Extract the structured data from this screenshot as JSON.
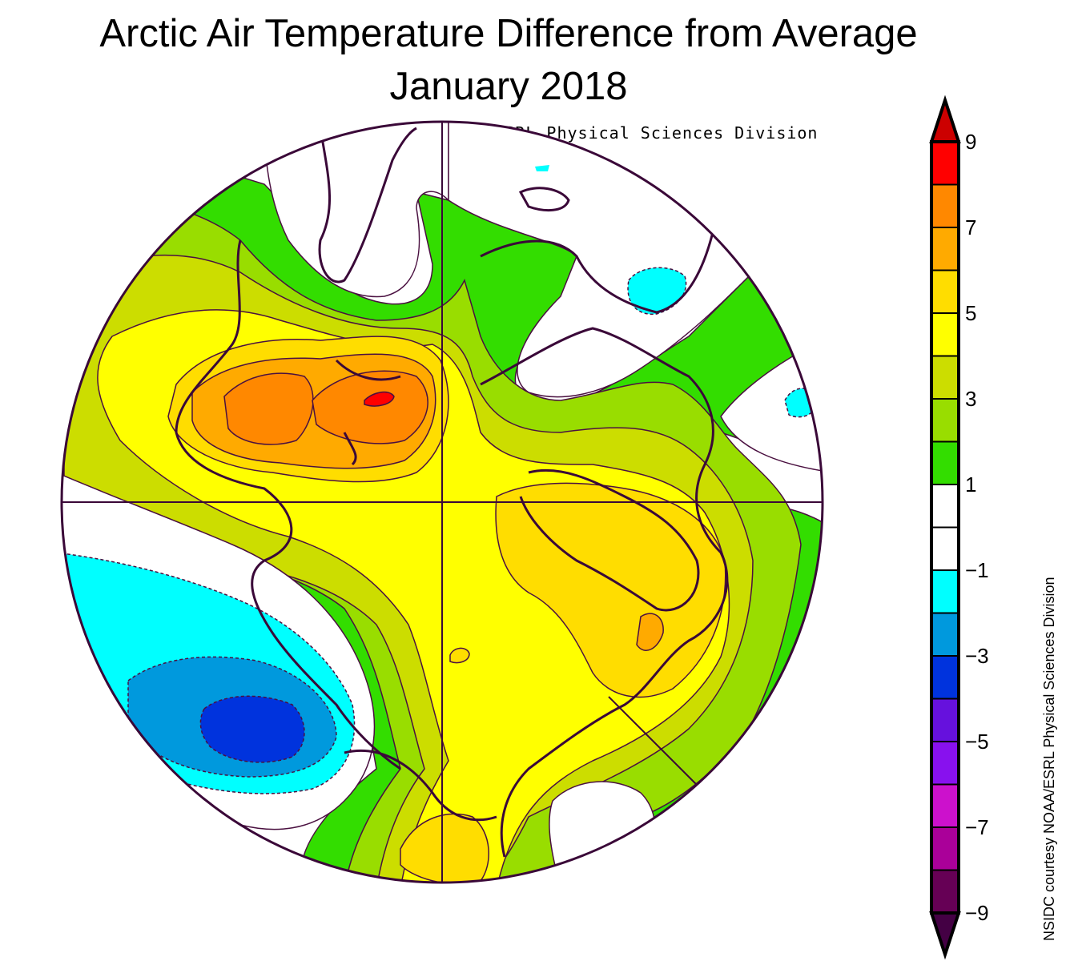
{
  "title": "Arctic Air Temperature Difference from Average",
  "subtitle": "January 2018",
  "credit_top": "NOAA/ESRL Physical Sciences Division",
  "credit_side": "NSIDC courtesy NOAA/ESRL Physical Sciences Division",
  "colors": {
    "white": "#ffffff",
    "green": "#33dd00",
    "lightgreen": "#99dd00",
    "olive": "#ccdd00",
    "yellow": "#ffff00",
    "gold": "#ffdd00",
    "orange_light": "#ffaa00",
    "orange": "#ff8800",
    "red": "#ff0000",
    "cyan": "#00ffff",
    "blue_light": "#0099dd",
    "blue": "#0033dd",
    "contour": "#4a1040"
  },
  "legend": {
    "labels": [
      "9",
      "7",
      "5",
      "3",
      "1",
      "−1",
      "−3",
      "−5",
      "−7",
      "−9"
    ],
    "bins": [
      {
        "min": 8,
        "max": 9,
        "color": "#ff0000"
      },
      {
        "min": 7,
        "max": 8,
        "color": "#ff8800"
      },
      {
        "min": 6,
        "max": 7,
        "color": "#ffaa00"
      },
      {
        "min": 5,
        "max": 6,
        "color": "#ffdd00"
      },
      {
        "min": 4,
        "max": 5,
        "color": "#ffff00"
      },
      {
        "min": 3,
        "max": 4,
        "color": "#ccdd00"
      },
      {
        "min": 2,
        "max": 3,
        "color": "#99dd00"
      },
      {
        "min": 1,
        "max": 2,
        "color": "#33dd00"
      },
      {
        "min": 0,
        "max": 1,
        "color": "#ffffff"
      },
      {
        "min": -1,
        "max": 0,
        "color": "#ffffff"
      },
      {
        "min": -2,
        "max": -1,
        "color": "#00ffff"
      },
      {
        "min": -3,
        "max": -2,
        "color": "#0099dd"
      },
      {
        "min": -4,
        "max": -3,
        "color": "#0033dd"
      },
      {
        "min": -5,
        "max": -4,
        "color": "#6611dd"
      },
      {
        "min": -6,
        "max": -5,
        "color": "#8811ee"
      },
      {
        "min": -7,
        "max": -6,
        "color": "#cc11cc"
      },
      {
        "min": -8,
        "max": -7,
        "color": "#aa0099"
      },
      {
        "min": -9,
        "max": -8,
        "color": "#660055"
      }
    ],
    "over_color": "#cc0000",
    "under_color": "#440044"
  }
}
